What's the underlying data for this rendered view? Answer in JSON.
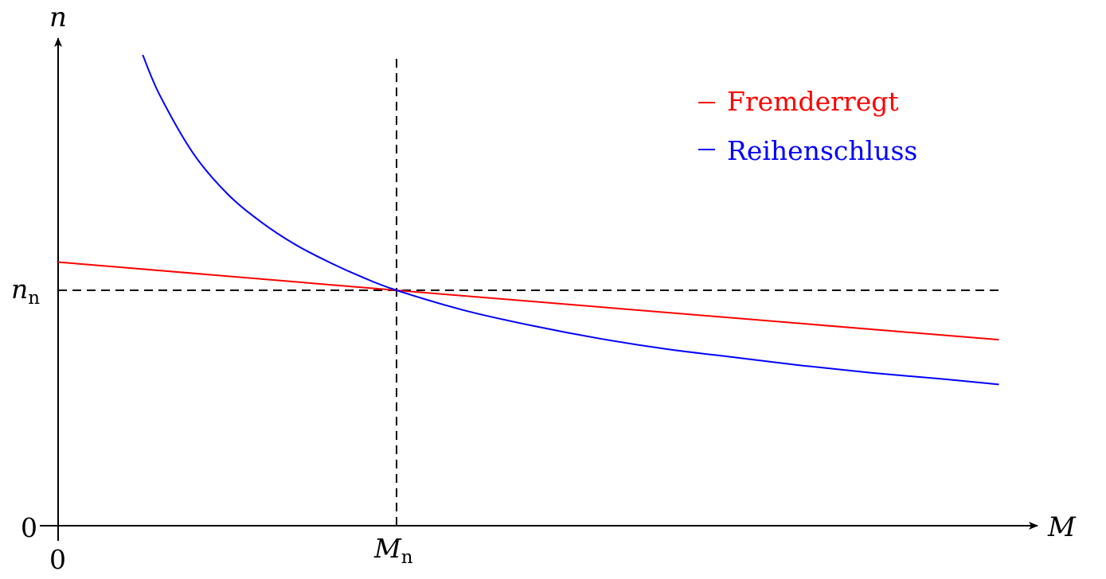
{
  "chart_data": {
    "type": "line",
    "xlabel": "M",
    "ylabel": "n",
    "origin_x_label": "0",
    "origin_y_label": "0",
    "reference": {
      "x_label_main": "M",
      "x_label_sub": "n",
      "y_label_main": "n",
      "y_label_sub": "n",
      "x": 1,
      "y": 1
    },
    "xlim": [
      0,
      2.8
    ],
    "ylim": [
      0,
      2.05
    ],
    "grid": false,
    "legend_position": "top-right",
    "series": [
      {
        "name": "Fremderregt",
        "color": "#ff0000",
        "x": [
          0,
          1,
          2.78
        ],
        "y": [
          1.12,
          1.0,
          0.79
        ]
      },
      {
        "name": "Reihenschluss",
        "color": "#0000ff",
        "x": [
          0.25,
          0.3,
          0.4,
          0.5,
          0.6,
          0.7,
          0.8,
          0.9,
          1.0,
          1.2,
          1.4,
          1.6,
          1.8,
          2.0,
          2.2,
          2.4,
          2.6,
          2.78
        ],
        "y": [
          2.0,
          1.83,
          1.58,
          1.41,
          1.29,
          1.195,
          1.12,
          1.055,
          1.0,
          0.915,
          0.85,
          0.795,
          0.75,
          0.715,
          0.68,
          0.65,
          0.625,
          0.6
        ]
      }
    ]
  }
}
